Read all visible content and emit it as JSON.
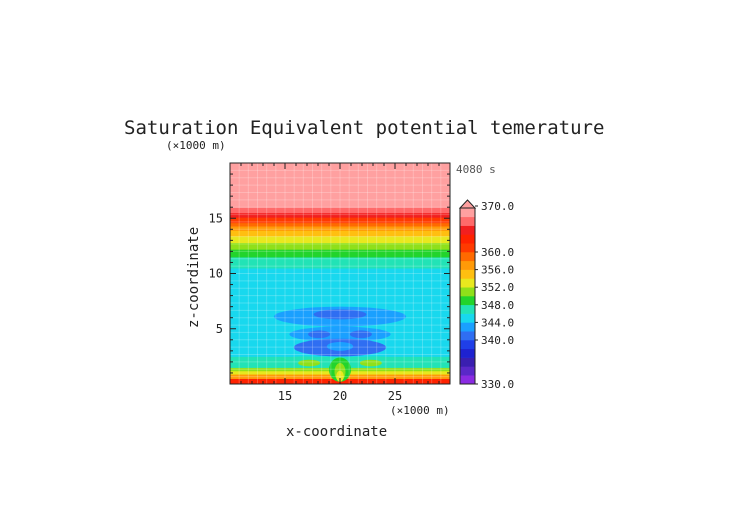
{
  "chart_data": {
    "type": "heatmap",
    "title": "Saturation Equivalent potential temerature",
    "xlabel": "x-coordinate",
    "ylabel": "z-coordinate",
    "x_unit": "(×1000 m)",
    "y_unit": "(×1000 m)",
    "time_label": "4080 s",
    "xlim": [
      10,
      30
    ],
    "ylim": [
      0,
      20
    ],
    "x_ticks": [
      15,
      20,
      25
    ],
    "y_ticks": [
      5,
      10,
      15
    ],
    "colorbar": {
      "min": 330,
      "max": 370,
      "labels": [
        "370.0",
        "360.0",
        "356.0",
        "352.0",
        "348.0",
        "344.0",
        "340.0",
        "330.0"
      ],
      "label_values": [
        370,
        360,
        356,
        352,
        348,
        344,
        340,
        330
      ],
      "levels": [
        {
          "from": 330,
          "to": 332,
          "color": "#8a2be2"
        },
        {
          "from": 332,
          "to": 334,
          "color": "#5a28c8"
        },
        {
          "from": 334,
          "to": 336,
          "color": "#3a1fb0"
        },
        {
          "from": 336,
          "to": 338,
          "color": "#1e22d0"
        },
        {
          "from": 338,
          "to": 340,
          "color": "#1f3fe8"
        },
        {
          "from": 340,
          "to": 342,
          "color": "#2f6ef2"
        },
        {
          "from": 342,
          "to": 344,
          "color": "#1aa0ff"
        },
        {
          "from": 344,
          "to": 346,
          "color": "#18d8ee"
        },
        {
          "from": 346,
          "to": 348,
          "color": "#22e3b6"
        },
        {
          "from": 348,
          "to": 350,
          "color": "#22d42c"
        },
        {
          "from": 350,
          "to": 352,
          "color": "#8fe01a"
        },
        {
          "from": 352,
          "to": 354,
          "color": "#e8e81e"
        },
        {
          "from": 354,
          "to": 356,
          "color": "#ffbf10"
        },
        {
          "from": 356,
          "to": 358,
          "color": "#ff9a08"
        },
        {
          "from": 358,
          "to": 360,
          "color": "#ff6a00"
        },
        {
          "from": 360,
          "to": 362,
          "color": "#ff3a00"
        },
        {
          "from": 362,
          "to": 364,
          "color": "#ff2200"
        },
        {
          "from": 364,
          "to": 366,
          "color": "#f21f1f"
        },
        {
          "from": 366,
          "to": 368,
          "color": "#ff6a6a"
        },
        {
          "from": 368,
          "to": 370,
          "color": "#ffa0a0"
        }
      ],
      "over_color": "#ffa0a0"
    },
    "horizontal_bands": [
      {
        "z_from": 0.0,
        "z_to": 0.5,
        "color": "#ff2200"
      },
      {
        "z_from": 0.5,
        "z_to": 0.9,
        "color": "#ff9a08"
      },
      {
        "z_from": 0.9,
        "z_to": 1.2,
        "color": "#e8e81e"
      },
      {
        "z_from": 1.2,
        "z_to": 1.5,
        "color": "#8fe01a"
      },
      {
        "z_from": 1.5,
        "z_to": 2.5,
        "color": "#22e3b6"
      },
      {
        "z_from": 2.5,
        "z_to": 10.5,
        "color": "#18d8ee"
      },
      {
        "z_from": 10.5,
        "z_to": 11.5,
        "color": "#22e3b6"
      },
      {
        "z_from": 11.5,
        "z_to": 12.2,
        "color": "#22d42c"
      },
      {
        "z_from": 12.2,
        "z_to": 12.8,
        "color": "#8fe01a"
      },
      {
        "z_from": 12.8,
        "z_to": 13.4,
        "color": "#e8e81e"
      },
      {
        "z_from": 13.4,
        "z_to": 13.9,
        "color": "#ffbf10"
      },
      {
        "z_from": 13.9,
        "z_to": 14.3,
        "color": "#ff9a08"
      },
      {
        "z_from": 14.3,
        "z_to": 14.6,
        "color": "#ff6a00"
      },
      {
        "z_from": 14.6,
        "z_to": 15.1,
        "color": "#ff3a00"
      },
      {
        "z_from": 15.1,
        "z_to": 15.5,
        "color": "#f21f1f"
      },
      {
        "z_from": 15.5,
        "z_to": 16.0,
        "color": "#ff6a6a"
      },
      {
        "z_from": 16.0,
        "z_to": 20.0,
        "color": "#ffa0a0"
      }
    ],
    "features": [
      {
        "shape": "ellipse",
        "x": 20,
        "z": 6.1,
        "rx": 6.0,
        "rz": 0.9,
        "color": "#1aa0ff"
      },
      {
        "shape": "ellipse",
        "x": 20,
        "z": 6.3,
        "rx": 2.4,
        "rz": 0.45,
        "color": "#2f6ef2"
      },
      {
        "shape": "ellipse",
        "x": 20,
        "z": 4.5,
        "rx": 4.6,
        "rz": 0.7,
        "color": "#1aa0ff"
      },
      {
        "shape": "ellipse",
        "x": 18.1,
        "z": 4.5,
        "rx": 1.0,
        "rz": 0.35,
        "color": "#2f6ef2"
      },
      {
        "shape": "ellipse",
        "x": 21.9,
        "z": 4.5,
        "rx": 1.0,
        "rz": 0.35,
        "color": "#2f6ef2"
      },
      {
        "shape": "ellipse",
        "x": 20,
        "z": 3.3,
        "rx": 4.2,
        "rz": 0.8,
        "color": "#2f6ef2"
      },
      {
        "shape": "ellipse",
        "x": 20,
        "z": 3.4,
        "rx": 1.2,
        "rz": 0.4,
        "color": "#1aa0ff"
      },
      {
        "shape": "ellipse",
        "x": 16.8,
        "z": 2.0,
        "rx": 2.2,
        "rz": 0.5,
        "color": "#22e3b6"
      },
      {
        "shape": "ellipse",
        "x": 23.2,
        "z": 2.0,
        "rx": 2.2,
        "rz": 0.5,
        "color": "#22e3b6"
      },
      {
        "shape": "ellipse",
        "x": 17.2,
        "z": 1.9,
        "rx": 1.0,
        "rz": 0.3,
        "color": "#8fe01a"
      },
      {
        "shape": "ellipse",
        "x": 22.8,
        "z": 1.9,
        "rx": 1.0,
        "rz": 0.3,
        "color": "#8fe01a"
      },
      {
        "shape": "ellipse",
        "x": 20,
        "z": 1.3,
        "rx": 1.0,
        "rz": 1.1,
        "color": "#22d42c"
      },
      {
        "shape": "ellipse",
        "x": 20,
        "z": 1.1,
        "rx": 0.5,
        "rz": 0.8,
        "color": "#8fe01a"
      },
      {
        "shape": "ellipse",
        "x": 20,
        "z": 0.7,
        "rx": 0.35,
        "rz": 0.5,
        "color": "#e8e81e"
      }
    ]
  }
}
